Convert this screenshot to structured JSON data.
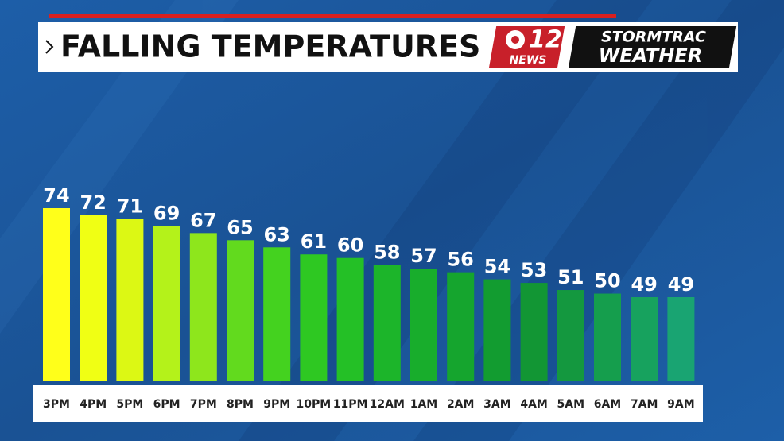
{
  "chart_data": {
    "type": "bar",
    "title": "FALLING TEMPERATURES",
    "categories": [
      "3PM",
      "4PM",
      "5PM",
      "6PM",
      "7PM",
      "8PM",
      "9PM",
      "10PM",
      "11PM",
      "12AM",
      "1AM",
      "2AM",
      "3AM",
      "4AM",
      "5AM",
      "6AM",
      "7AM",
      "9AM"
    ],
    "values": [
      74,
      72,
      71,
      69,
      67,
      65,
      63,
      61,
      60,
      58,
      57,
      56,
      54,
      53,
      51,
      50,
      49,
      49
    ],
    "colors": [
      "#ffff1a",
      "#f0ff14",
      "#dcf814",
      "#b4f21a",
      "#8ee61c",
      "#62da1e",
      "#44d21f",
      "#2ec822",
      "#24c026",
      "#1cb52a",
      "#18ad2c",
      "#15a52e",
      "#129c30",
      "#129634",
      "#14983f",
      "#159e4d",
      "#17a25e",
      "#19a472"
    ]
  },
  "branding": {
    "channel": "12",
    "network": "NEWS",
    "brand": "STORMTRAC",
    "product": "WEATHER"
  }
}
